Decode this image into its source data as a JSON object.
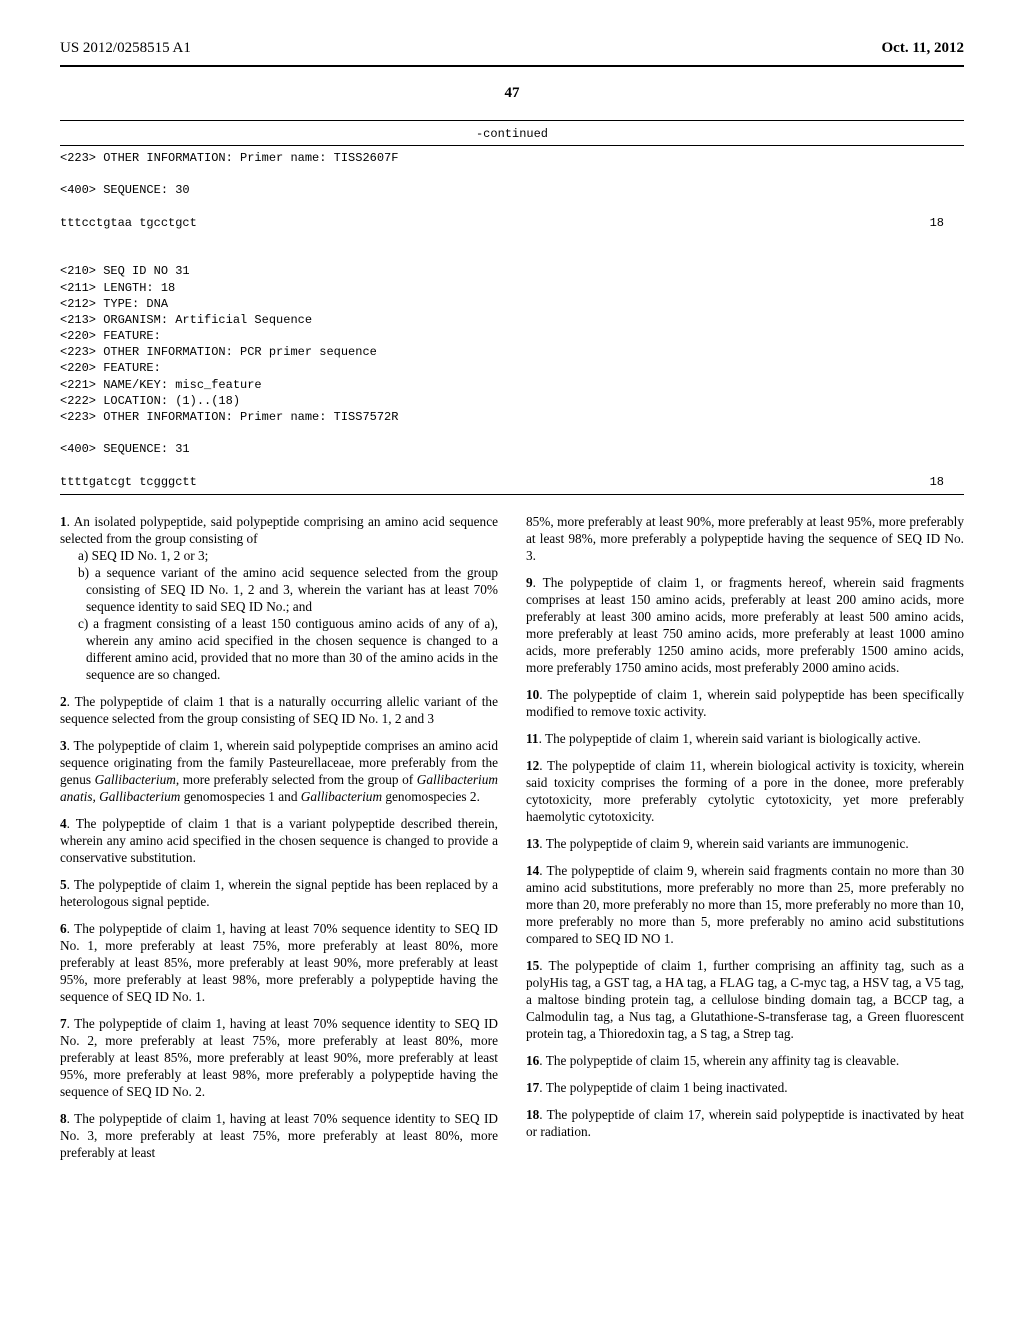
{
  "header": {
    "patent_no": "US 2012/0258515 A1",
    "date": "Oct. 11, 2012"
  },
  "page_number": "47",
  "seq": {
    "continued": "-continued",
    "line1": "<223> OTHER INFORMATION: Primer name: TISS2607F",
    "line2": "<400> SEQUENCE: 30",
    "seq30": "tttcctgtaa tgcctgct",
    "seq30_len": "18",
    "block2a": "<210> SEQ ID NO 31",
    "block2b": "<211> LENGTH: 18",
    "block2c": "<212> TYPE: DNA",
    "block2d": "<213> ORGANISM: Artificial Sequence",
    "block2e": "<220> FEATURE:",
    "block2f": "<223> OTHER INFORMATION: PCR primer sequence",
    "block2g": "<220> FEATURE:",
    "block2h": "<221> NAME/KEY: misc_feature",
    "block2i": "<222> LOCATION: (1)..(18)",
    "block2j": "<223> OTHER INFORMATION: Primer name: TISS7572R",
    "block2k": "<400> SEQUENCE: 31",
    "seq31": "ttttgatcgt tcgggctt",
    "seq31_len": "18"
  },
  "claims_left": {
    "c1_lead": "1",
    "c1": ". An isolated polypeptide, said polypeptide comprising an amino acid sequence selected from the group consisting of",
    "c1a": "a) SEQ ID No. 1, 2 or 3;",
    "c1b": "b) a sequence variant of the amino acid sequence selected from the group consisting of SEQ ID No. 1, 2 and 3, wherein the variant has at least 70% sequence identity to said SEQ ID No.; and",
    "c1c": "c) a fragment consisting of a least 150 contiguous amino acids of any of a), wherein any amino acid specified in the chosen sequence is changed to a different amino acid, provided that no more than 30 of the amino acids in the sequence are so changed.",
    "c2_lead": "2",
    "c2": ". The polypeptide of claim 1 that is a naturally occurring allelic variant of the sequence selected from the group consisting of SEQ ID No. 1, 2 and 3",
    "c3_lead": "3",
    "c3a": ". The polypeptide of claim 1, wherein said polypeptide comprises an amino acid sequence originating from the family Pasteurellaceae, more preferably from the genus ",
    "c3b": "Gallibacterium",
    "c3c": ", more preferably selected from the group of ",
    "c3d": "Gallibacterium anatis, Gallibacterium",
    "c3e": " genomospecies 1 and ",
    "c3f": "Gallibacterium",
    "c3g": " genomospecies 2.",
    "c4_lead": "4",
    "c4": ". The polypeptide of claim 1 that is a variant polypeptide described therein, wherein any amino acid specified in the chosen sequence is changed to provide a conservative substitution.",
    "c5_lead": "5",
    "c5": ". The polypeptide of claim 1, wherein the signal peptide has been replaced by a heterologous signal peptide.",
    "c6_lead": "6",
    "c6": ". The polypeptide of claim 1, having at least 70% sequence identity to SEQ ID No. 1, more preferably at least 75%, more preferably at least 80%, more preferably at least 85%, more preferably at least 90%, more preferably at least 95%, more preferably at least 98%, more preferably a polypeptide having the sequence of SEQ ID No. 1.",
    "c7_lead": "7",
    "c7": ". The polypeptide of claim 1, having at least 70% sequence identity to SEQ ID No. 2, more preferably at least 75%, more preferably at least 80%, more preferably at least 85%, more preferably at least 90%, more preferably at least 95%, more preferably at least 98%, more preferably a polypeptide having the sequence of SEQ ID No. 2.",
    "c8_lead": "8",
    "c8": ". The polypeptide of claim 1, having at least 70% sequence identity to SEQ ID No. 3, more preferably at least 75%, more preferably at least 80%, more preferably at least"
  },
  "claims_right": {
    "c8_cont": "85%, more preferably at least 90%, more preferably at least 95%, more preferably at least 98%, more preferably a polypeptide having the sequence of SEQ ID No. 3.",
    "c9_lead": "9",
    "c9": ". The polypeptide of claim 1, or fragments hereof, wherein said fragments comprises at least 150 amino acids, preferably at least 200 amino acids, more preferably at least 300 amino acids, more preferably at least 500 amino acids, more preferably at least 750 amino acids, more preferably at least 1000 amino acids, more preferably 1250 amino acids, more preferably 1500 amino acids, more preferably 1750 amino acids, most preferably 2000 amino acids.",
    "c10_lead": "10",
    "c10": ". The polypeptide of claim 1, wherein said polypeptide has been specifically modified to remove toxic activity.",
    "c11_lead": "11",
    "c11": ". The polypeptide of claim 1, wherein said variant is biologically active.",
    "c12_lead": "12",
    "c12": ". The polypeptide of claim 11, wherein biological activity is toxicity, wherein said toxicity comprises the forming of a pore in the donee, more preferably cytotoxicity, more preferably cytolytic cytotoxicity, yet more preferably haemolytic cytotoxicity.",
    "c13_lead": "13",
    "c13": ". The polypeptide of claim 9, wherein said variants are immunogenic.",
    "c14_lead": "14",
    "c14": ". The polypeptide of claim 9, wherein said fragments contain no more than 30 amino acid substitutions, more preferably no more than 25, more preferably no more than 20, more preferably no more than 15, more preferably no more than 10, more preferably no more than 5, more preferably no amino acid substitutions compared to SEQ ID NO 1.",
    "c15_lead": "15",
    "c15": ". The polypeptide of claim 1, further comprising an affinity tag, such as a polyHis tag, a GST tag, a HA tag, a FLAG tag, a C-myc tag, a HSV tag, a V5 tag, a maltose binding protein tag, a cellulose binding domain tag, a BCCP tag, a Calmodulin tag, a Nus tag, a Glutathione-S-transferase tag, a Green fluorescent protein tag, a Thioredoxin tag, a S tag, a Strep tag.",
    "c16_lead": "16",
    "c16": ". The polypeptide of claim 15, wherein any affinity tag is cleavable.",
    "c17_lead": "17",
    "c17": ". The polypeptide of claim 1 being inactivated.",
    "c18_lead": "18",
    "c18": ". The polypeptide of claim 17, wherein said polypeptide is inactivated by heat or radiation."
  }
}
